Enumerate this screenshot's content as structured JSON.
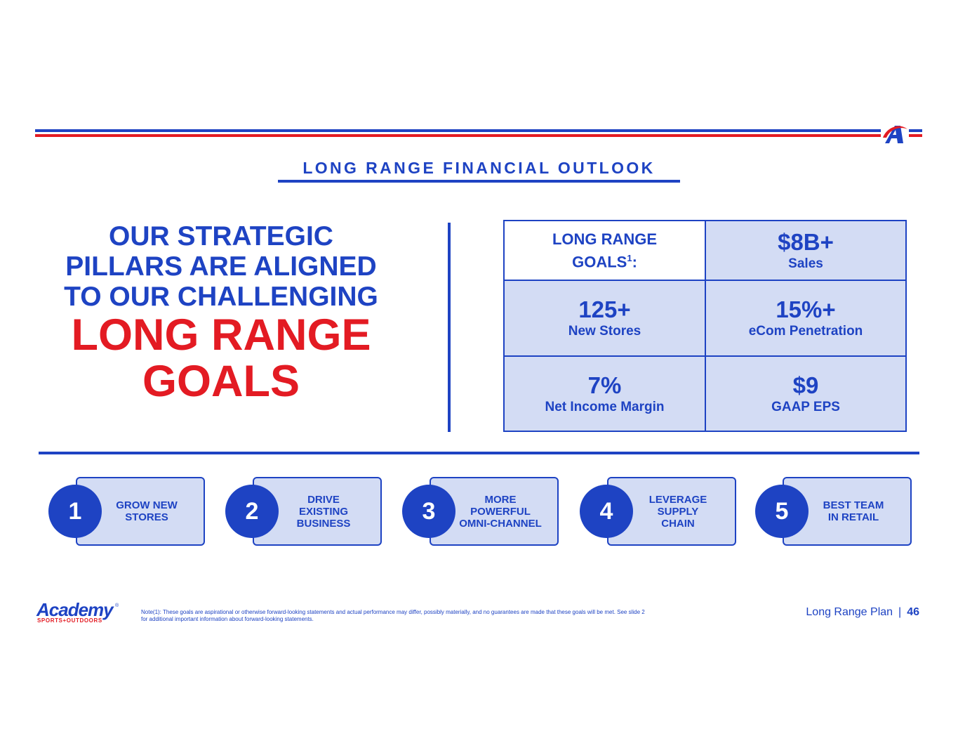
{
  "header": {
    "section_title": "LONG RANGE FINANCIAL OUTLOOK"
  },
  "headline": {
    "line1": "OUR STRATEGIC",
    "line2": "PILLARS ARE ALIGNED",
    "line3": "TO OUR CHALLENGING",
    "line4": "LONG RANGE",
    "line5": "GOALS"
  },
  "goals": {
    "header_line1": "LONG RANGE",
    "header_line2": "GOALS",
    "header_sup": "1",
    "header_colon": ":",
    "items": [
      {
        "value": "$8B+",
        "label": "Sales"
      },
      {
        "value": "125+",
        "label": "New Stores"
      },
      {
        "value": "15%+",
        "label": "eCom Penetration"
      },
      {
        "value": "7%",
        "label": "Net Income Margin"
      },
      {
        "value": "$9",
        "label": "GAAP EPS"
      }
    ]
  },
  "pillars": [
    {
      "number": "1",
      "line1": "GROW NEW",
      "line2": "STORES",
      "line3": ""
    },
    {
      "number": "2",
      "line1": "DRIVE",
      "line2": "EXISTING",
      "line3": "BUSINESS"
    },
    {
      "number": "3",
      "line1": "MORE",
      "line2": "POWERFUL",
      "line3": "OMNI-CHANNEL"
    },
    {
      "number": "4",
      "line1": "LEVERAGE",
      "line2": "SUPPLY",
      "line3": "CHAIN"
    },
    {
      "number": "5",
      "line1": "BEST TEAM",
      "line2": "IN RETAIL",
      "line3": ""
    }
  ],
  "footer": {
    "logo_word": "Academy",
    "logo_reg": "®",
    "logo_tagline": "SPORTS+OUTDOORS",
    "note": "Note(1): These goals are aspirational or otherwise forward-looking statements and actual performance may differ, possibly materially, and no guarantees are made that these goals will be met. See slide 2 for additional important information about forward-looking statements.",
    "deck_name": "Long Range Plan",
    "separator": "|",
    "page_number": "46"
  },
  "colors": {
    "brand_blue": "#1e43c3",
    "brand_red": "#e31b23",
    "light_blue_fill": "#d3dcf4"
  },
  "icons": {
    "brand_mark": "academy-a-logo-icon"
  }
}
